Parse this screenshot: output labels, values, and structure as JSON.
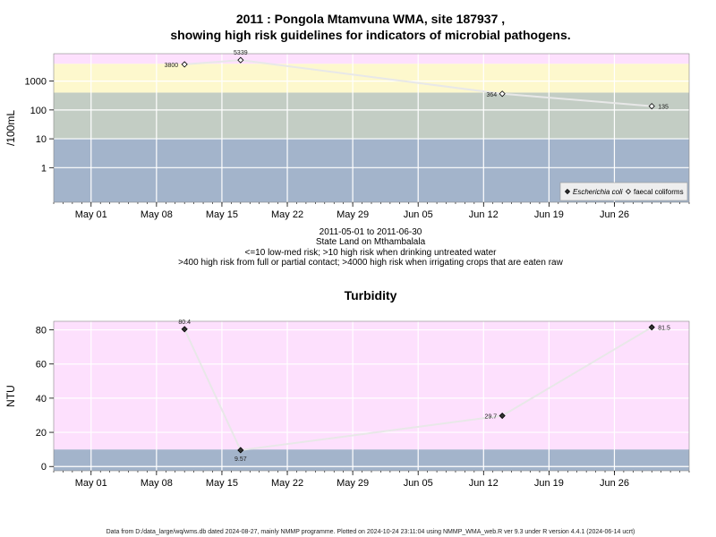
{
  "title_line1": "2011 : Pongola Mtamvuna WMA, site 187937 ,",
  "title_line2": "showing high risk guidelines for indicators of microbial pathogens.",
  "caption_lines": [
    "2011-05-01 to 2011-06-30",
    "State Land on Mthambalala",
    "<=10 low-med risk; >10 high risk when drinking untreated water",
    ">400 high risk from full or partial contact; >4000 high risk when irrigating crops that are eaten raw"
  ],
  "footer": "Data from D:/data_large/wq/wms.db dated 2024-08-27, mainly NMMP programme. Plotted on 2024-10-24 23:11:04 using NMMP_WMA_web.R ver 9.3 under R version 4.4.1 (2024-06-14 ucrt)",
  "colors": {
    "band_low": "#a3b4cb",
    "band_mid": "#c3cdc4",
    "band_high": "#fdf8cd",
    "band_top": "#fde0fd",
    "ntu_low": "#a3b4cb",
    "ntu_high": "#fde0fd",
    "line": "#e8e8e8",
    "grid": "#ffffff"
  },
  "chart_data": [
    {
      "type": "line",
      "title": "",
      "ylabel": "/100mL",
      "scale": "log",
      "xlim": [
        "2011-04-27",
        "2011-07-04"
      ],
      "ylim_log10": [
        -1.2,
        3.95
      ],
      "x_ticks": [
        {
          "date": "2011-05-01",
          "label": "May 01"
        },
        {
          "date": "2011-05-08",
          "label": "May 08"
        },
        {
          "date": "2011-05-15",
          "label": "May 15"
        },
        {
          "date": "2011-05-22",
          "label": "May 22"
        },
        {
          "date": "2011-05-29",
          "label": "May 29"
        },
        {
          "date": "2011-06-05",
          "label": "Jun 05"
        },
        {
          "date": "2011-06-12",
          "label": "Jun 12"
        },
        {
          "date": "2011-06-19",
          "label": "Jun 19"
        },
        {
          "date": "2011-06-26",
          "label": "Jun 26"
        }
      ],
      "y_ticks": [
        {
          "value": 1,
          "label": "1"
        },
        {
          "value": 10,
          "label": "10"
        },
        {
          "value": 100,
          "label": "100"
        },
        {
          "value": 1000,
          "label": "1000"
        }
      ],
      "bands": [
        {
          "from": 0.06,
          "to": 10,
          "color": "band_low"
        },
        {
          "from": 10,
          "to": 400,
          "color": "band_mid"
        },
        {
          "from": 400,
          "to": 4000,
          "color": "band_high"
        },
        {
          "from": 4000,
          "to": 8900,
          "color": "band_top"
        }
      ],
      "series": [
        {
          "name": "faecal coliforms",
          "marker": "open-diamond",
          "points": [
            {
              "x": "2011-05-11",
              "y": 3800,
              "label": "3800"
            },
            {
              "x": "2011-05-17",
              "y": 5339,
              "label": "5339"
            },
            {
              "x": "2011-06-14",
              "y": 364,
              "label": "364"
            },
            {
              "x": "2011-06-30",
              "y": 135,
              "label": "135"
            }
          ]
        }
      ],
      "legend": {
        "position": "bottom-right",
        "entries": [
          {
            "label": "Escherichia coli",
            "marker": "filled-diamond",
            "italic": true
          },
          {
            "label": "faecal coliforms",
            "marker": "open-diamond",
            "italic": false
          }
        ]
      }
    },
    {
      "type": "line",
      "title": "Turbidity",
      "ylabel": "NTU",
      "scale": "linear",
      "xlim": [
        "2011-04-27",
        "2011-07-04"
      ],
      "ylim": [
        -2.5,
        85
      ],
      "x_ticks": [
        {
          "date": "2011-05-01",
          "label": "May 01"
        },
        {
          "date": "2011-05-08",
          "label": "May 08"
        },
        {
          "date": "2011-05-15",
          "label": "May 15"
        },
        {
          "date": "2011-05-22",
          "label": "May 22"
        },
        {
          "date": "2011-05-29",
          "label": "May 29"
        },
        {
          "date": "2011-06-05",
          "label": "Jun 05"
        },
        {
          "date": "2011-06-12",
          "label": "Jun 12"
        },
        {
          "date": "2011-06-19",
          "label": "Jun 19"
        },
        {
          "date": "2011-06-26",
          "label": "Jun 26"
        }
      ],
      "y_ticks": [
        {
          "value": 0,
          "label": "0"
        },
        {
          "value": 20,
          "label": "20"
        },
        {
          "value": 40,
          "label": "40"
        },
        {
          "value": 60,
          "label": "60"
        },
        {
          "value": 80,
          "label": "80"
        }
      ],
      "bands": [
        {
          "from": -2.5,
          "to": 10,
          "color": "ntu_low"
        },
        {
          "from": 10,
          "to": 85,
          "color": "ntu_high"
        }
      ],
      "series": [
        {
          "name": "",
          "marker": "filled-diamond",
          "points": [
            {
              "x": "2011-05-11",
              "y": 80.4,
              "label": "80.4"
            },
            {
              "x": "2011-05-17",
              "y": 9.57,
              "label": "9.57"
            },
            {
              "x": "2011-06-14",
              "y": 29.7,
              "label": "29.7"
            },
            {
              "x": "2011-06-30",
              "y": 81.5,
              "label": "81.5"
            }
          ]
        }
      ]
    }
  ]
}
